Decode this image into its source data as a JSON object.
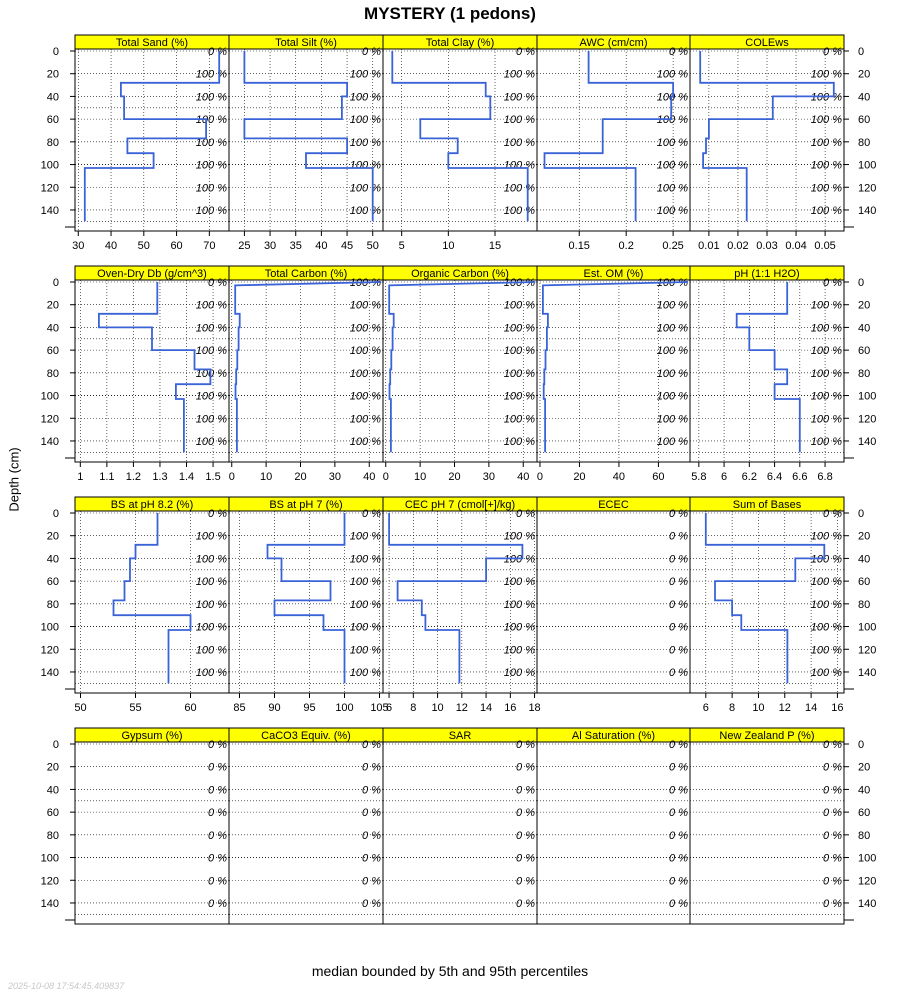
{
  "title": "MYSTERY (1 pedons)",
  "ylabel": "Depth (cm)",
  "caption": "median bounded by 5th and 95th percentiles",
  "timestamp": "2025-10-08 17:54:45.409837",
  "colors": {
    "strip": "#ffff00",
    "line": "#3a63d8",
    "grid": "#000000"
  },
  "chart_data": {
    "type": "line",
    "layout": {
      "rows": 4,
      "cols": 5
    },
    "depth_ticks": [
      0,
      20,
      40,
      60,
      80,
      100,
      120,
      140
    ],
    "ylim": [
      0,
      155
    ],
    "panels": [
      {
        "name": "Total Sand (%)",
        "xlim": [
          29,
          76
        ],
        "xticks": [
          30,
          40,
          50,
          60,
          70
        ],
        "series": [
          [
            73,
            0
          ],
          [
            73,
            28
          ],
          [
            43,
            28
          ],
          [
            43,
            40
          ],
          [
            44,
            40
          ],
          [
            44,
            60
          ],
          [
            69,
            60
          ],
          [
            69,
            77
          ],
          [
            45,
            77
          ],
          [
            45,
            90
          ],
          [
            53,
            90
          ],
          [
            53,
            103
          ],
          [
            32,
            103
          ],
          [
            32,
            150
          ]
        ],
        "pct": [
          "0 %",
          "100 %",
          "100 %",
          "100 %",
          "100 %",
          "100 %",
          "100 %",
          "100 %"
        ]
      },
      {
        "name": "Total Silt (%)",
        "xlim": [
          22,
          52
        ],
        "xticks": [
          25,
          30,
          35,
          40,
          45,
          50
        ],
        "series": [
          [
            25,
            0
          ],
          [
            25,
            28
          ],
          [
            45,
            28
          ],
          [
            45,
            40
          ],
          [
            44,
            40
          ],
          [
            44,
            60
          ],
          [
            25,
            60
          ],
          [
            25,
            77
          ],
          [
            45,
            77
          ],
          [
            45,
            90
          ],
          [
            37,
            90
          ],
          [
            37,
            103
          ],
          [
            50,
            103
          ],
          [
            50,
            150
          ]
        ],
        "pct": [
          "0 %",
          "100 %",
          "100 %",
          "100 %",
          "100 %",
          "100 %",
          "100 %",
          "100 %"
        ]
      },
      {
        "name": "Total Clay (%)",
        "xlim": [
          3,
          19.5
        ],
        "xticks": [
          5,
          10,
          15
        ],
        "series": [
          [
            4,
            0
          ],
          [
            4,
            28
          ],
          [
            14,
            28
          ],
          [
            14,
            40
          ],
          [
            14.5,
            40
          ],
          [
            14.5,
            60
          ],
          [
            7,
            60
          ],
          [
            7,
            77
          ],
          [
            11,
            77
          ],
          [
            11,
            90
          ],
          [
            10,
            90
          ],
          [
            10,
            103
          ],
          [
            18.5,
            103
          ],
          [
            18.5,
            150
          ]
        ],
        "pct": [
          "0 %",
          "100 %",
          "100 %",
          "100 %",
          "100 %",
          "100 %",
          "100 %",
          "100 %"
        ]
      },
      {
        "name": "AWC (cm/cm)",
        "xlim": [
          0.105,
          0.268
        ],
        "xticks": [
          0.15,
          0.2,
          0.25
        ],
        "series": [
          [
            0.16,
            0
          ],
          [
            0.16,
            28
          ],
          [
            0.25,
            28
          ],
          [
            0.25,
            40
          ],
          [
            0.248,
            40
          ],
          [
            0.248,
            60
          ],
          [
            0.175,
            60
          ],
          [
            0.175,
            90
          ],
          [
            0.113,
            90
          ],
          [
            0.113,
            103
          ],
          [
            0.21,
            103
          ],
          [
            0.21,
            150
          ]
        ],
        "pct": [
          "0 %",
          "100 %",
          "100 %",
          "100 %",
          "100 %",
          "100 %",
          "100 %",
          "100 %"
        ]
      },
      {
        "name": "COLEws",
        "xlim": [
          0.0035,
          0.0565
        ],
        "xticks": [
          0.01,
          0.02,
          0.03,
          0.04,
          0.05
        ],
        "series": [
          [
            0.007,
            0
          ],
          [
            0.007,
            28
          ],
          [
            0.053,
            28
          ],
          [
            0.053,
            40
          ],
          [
            0.032,
            40
          ],
          [
            0.032,
            60
          ],
          [
            0.01,
            60
          ],
          [
            0.01,
            77
          ],
          [
            0.009,
            77
          ],
          [
            0.009,
            90
          ],
          [
            0.008,
            90
          ],
          [
            0.008,
            103
          ],
          [
            0.023,
            103
          ],
          [
            0.023,
            150
          ]
        ],
        "pct": [
          "0 %",
          "100 %",
          "100 %",
          "100 %",
          "100 %",
          "100 %",
          "100 %",
          "100 %"
        ]
      },
      {
        "name": "Oven-Dry Db (g/cm^3)",
        "xlim": [
          0.98,
          1.56
        ],
        "xticks": [
          1.0,
          1.1,
          1.2,
          1.3,
          1.4,
          1.5
        ],
        "series": [
          [
            1.29,
            0
          ],
          [
            1.29,
            28
          ],
          [
            1.07,
            28
          ],
          [
            1.07,
            40
          ],
          [
            1.27,
            40
          ],
          [
            1.27,
            60
          ],
          [
            1.43,
            60
          ],
          [
            1.43,
            77
          ],
          [
            1.49,
            77
          ],
          [
            1.49,
            90
          ],
          [
            1.36,
            90
          ],
          [
            1.36,
            103
          ],
          [
            1.39,
            103
          ],
          [
            1.39,
            150
          ]
        ],
        "pct": [
          "0 %",
          "100 %",
          "100 %",
          "100 %",
          "100 %",
          "100 %",
          "100 %",
          "100 %"
        ]
      },
      {
        "name": "Total Carbon (%)",
        "xlim": [
          -0.8,
          44
        ],
        "xticks": [
          0,
          10,
          20,
          30,
          40
        ],
        "series": [
          [
            43.5,
            0
          ],
          [
            1,
            3
          ],
          [
            1,
            28
          ],
          [
            2.3,
            28
          ],
          [
            2.3,
            40
          ],
          [
            2,
            40
          ],
          [
            2,
            60
          ],
          [
            1.6,
            60
          ],
          [
            1.6,
            77
          ],
          [
            1.3,
            77
          ],
          [
            1.3,
            90
          ],
          [
            1.1,
            90
          ],
          [
            1.1,
            103
          ],
          [
            1.5,
            103
          ],
          [
            1.5,
            150
          ]
        ],
        "pct": [
          "100 %",
          "100 %",
          "100 %",
          "100 %",
          "100 %",
          "100 %",
          "100 %",
          "100 %"
        ]
      },
      {
        "name": "Organic Carbon (%)",
        "xlim": [
          -0.8,
          44
        ],
        "xticks": [
          0,
          10,
          20,
          30,
          40
        ],
        "series": [
          [
            43.5,
            0
          ],
          [
            1,
            3
          ],
          [
            1,
            28
          ],
          [
            2.3,
            28
          ],
          [
            2.3,
            40
          ],
          [
            2,
            40
          ],
          [
            2,
            60
          ],
          [
            1.6,
            60
          ],
          [
            1.6,
            77
          ],
          [
            1.3,
            77
          ],
          [
            1.3,
            90
          ],
          [
            1.1,
            90
          ],
          [
            1.1,
            103
          ],
          [
            1.5,
            103
          ],
          [
            1.5,
            150
          ]
        ],
        "pct": [
          "100 %",
          "100 %",
          "100 %",
          "100 %",
          "100 %",
          "100 %",
          "100 %",
          "100 %"
        ]
      },
      {
        "name": "Est. OM (%)",
        "xlim": [
          -1.5,
          76
        ],
        "xticks": [
          0,
          20,
          40,
          60
        ],
        "series": [
          [
            75,
            0
          ],
          [
            1.5,
            3
          ],
          [
            1.5,
            28
          ],
          [
            4,
            28
          ],
          [
            4,
            40
          ],
          [
            3.5,
            40
          ],
          [
            3.5,
            60
          ],
          [
            2.8,
            60
          ],
          [
            2.8,
            77
          ],
          [
            2.2,
            77
          ],
          [
            2.2,
            90
          ],
          [
            1.9,
            90
          ],
          [
            1.9,
            103
          ],
          [
            2.6,
            103
          ],
          [
            2.6,
            150
          ]
        ],
        "pct": [
          "100 %",
          "100 %",
          "100 %",
          "100 %",
          "100 %",
          "100 %",
          "100 %",
          "100 %"
        ]
      },
      {
        "name": "pH (1:1 H2O)",
        "xlim": [
          5.73,
          6.95
        ],
        "xticks": [
          5.8,
          6.0,
          6.2,
          6.4,
          6.6,
          6.8
        ],
        "series": [
          [
            6.5,
            0
          ],
          [
            6.5,
            28
          ],
          [
            6.1,
            28
          ],
          [
            6.1,
            40
          ],
          [
            6.2,
            40
          ],
          [
            6.2,
            60
          ],
          [
            6.4,
            60
          ],
          [
            6.4,
            77
          ],
          [
            6.5,
            77
          ],
          [
            6.5,
            90
          ],
          [
            6.4,
            90
          ],
          [
            6.4,
            103
          ],
          [
            6.6,
            103
          ],
          [
            6.6,
            150
          ]
        ],
        "pct": [
          "0 %",
          "100 %",
          "100 %",
          "100 %",
          "100 %",
          "100 %",
          "100 %",
          "100 %"
        ]
      },
      {
        "name": "BS at pH 8.2 (%)",
        "xlim": [
          49.5,
          63.5
        ],
        "xticks": [
          50,
          55,
          60
        ],
        "series": [
          [
            57,
            0
          ],
          [
            57,
            28
          ],
          [
            55,
            28
          ],
          [
            55,
            40
          ],
          [
            54.5,
            40
          ],
          [
            54.5,
            60
          ],
          [
            54,
            60
          ],
          [
            54,
            77
          ],
          [
            53,
            77
          ],
          [
            53,
            90
          ],
          [
            60,
            90
          ],
          [
            60,
            103
          ],
          [
            58,
            103
          ],
          [
            58,
            150
          ]
        ],
        "pct": [
          "0 %",
          "100 %",
          "100 %",
          "100 %",
          "100 %",
          "100 %",
          "100 %",
          "100 %"
        ]
      },
      {
        "name": "BS at pH 7 (%)",
        "xlim": [
          83.5,
          105.5
        ],
        "xticks": [
          85,
          90,
          95,
          100,
          105
        ],
        "series": [
          [
            100,
            0
          ],
          [
            100,
            28
          ],
          [
            89,
            28
          ],
          [
            89,
            40
          ],
          [
            91,
            40
          ],
          [
            91,
            60
          ],
          [
            98,
            60
          ],
          [
            98,
            77
          ],
          [
            90,
            77
          ],
          [
            90,
            90
          ],
          [
            97,
            90
          ],
          [
            97,
            103
          ],
          [
            100,
            103
          ],
          [
            100,
            150
          ]
        ],
        "pct": [
          "0 %",
          "100 %",
          "100 %",
          "100 %",
          "100 %",
          "100 %",
          "100 %",
          "100 %"
        ]
      },
      {
        "name": "CEC pH 7 (cmol[+]/kg)",
        "xlim": [
          5.5,
          18.2
        ],
        "xticks": [
          6,
          8,
          10,
          12,
          14,
          16,
          18
        ],
        "series": [
          [
            6,
            0
          ],
          [
            6,
            28
          ],
          [
            17,
            28
          ],
          [
            17,
            40
          ],
          [
            14,
            40
          ],
          [
            14,
            60
          ],
          [
            6.7,
            60
          ],
          [
            6.7,
            77
          ],
          [
            8.7,
            77
          ],
          [
            8.7,
            90
          ],
          [
            9,
            90
          ],
          [
            9,
            103
          ],
          [
            11.8,
            103
          ],
          [
            11.8,
            150
          ]
        ],
        "pct": [
          "0 %",
          "100 %",
          "100 %",
          "100 %",
          "100 %",
          "100 %",
          "100 %",
          "100 %"
        ]
      },
      {
        "name": "ECEC",
        "xlim": [
          0,
          1
        ],
        "xticks": [],
        "series": [],
        "pct": [
          "0 %",
          "0 %",
          "0 %",
          "0 %",
          "0 %",
          "0 %",
          "0 %",
          "0 %"
        ]
      },
      {
        "name": "Sum of Bases",
        "xlim": [
          4.8,
          16.5
        ],
        "xticks": [
          6,
          8,
          10,
          12,
          14,
          16
        ],
        "series": [
          [
            6,
            0
          ],
          [
            6,
            28
          ],
          [
            15,
            28
          ],
          [
            15,
            40
          ],
          [
            12.8,
            40
          ],
          [
            12.8,
            60
          ],
          [
            6.7,
            60
          ],
          [
            6.7,
            77
          ],
          [
            8,
            77
          ],
          [
            8,
            90
          ],
          [
            8.7,
            90
          ],
          [
            8.7,
            103
          ],
          [
            12.2,
            103
          ],
          [
            12.2,
            150
          ]
        ],
        "pct": [
          "0 %",
          "100 %",
          "100 %",
          "100 %",
          "100 %",
          "100 %",
          "100 %",
          "100 %"
        ]
      },
      {
        "name": "Gypsum (%)",
        "xlim": [
          0,
          1
        ],
        "xticks": [],
        "series": [],
        "pct": [
          "0 %",
          "0 %",
          "0 %",
          "0 %",
          "0 %",
          "0 %",
          "0 %",
          "0 %"
        ]
      },
      {
        "name": "CaCO3 Equiv. (%)",
        "xlim": [
          0,
          1
        ],
        "xticks": [],
        "series": [],
        "pct": [
          "0 %",
          "0 %",
          "0 %",
          "0 %",
          "0 %",
          "0 %",
          "0 %",
          "0 %"
        ]
      },
      {
        "name": "SAR",
        "xlim": [
          0,
          1
        ],
        "xticks": [],
        "series": [],
        "pct": [
          "0 %",
          "0 %",
          "0 %",
          "0 %",
          "0 %",
          "0 %",
          "0 %",
          "0 %"
        ]
      },
      {
        "name": "Al Saturation (%)",
        "xlim": [
          0,
          1
        ],
        "xticks": [],
        "series": [],
        "pct": [
          "0 %",
          "0 %",
          "0 %",
          "0 %",
          "0 %",
          "0 %",
          "0 %",
          "0 %"
        ]
      },
      {
        "name": "New Zealand P (%)",
        "xlim": [
          0,
          1
        ],
        "xticks": [],
        "series": [],
        "pct": [
          "0 %",
          "0 %",
          "0 %",
          "0 %",
          "0 %",
          "0 %",
          "0 %",
          "0 %"
        ]
      }
    ]
  }
}
